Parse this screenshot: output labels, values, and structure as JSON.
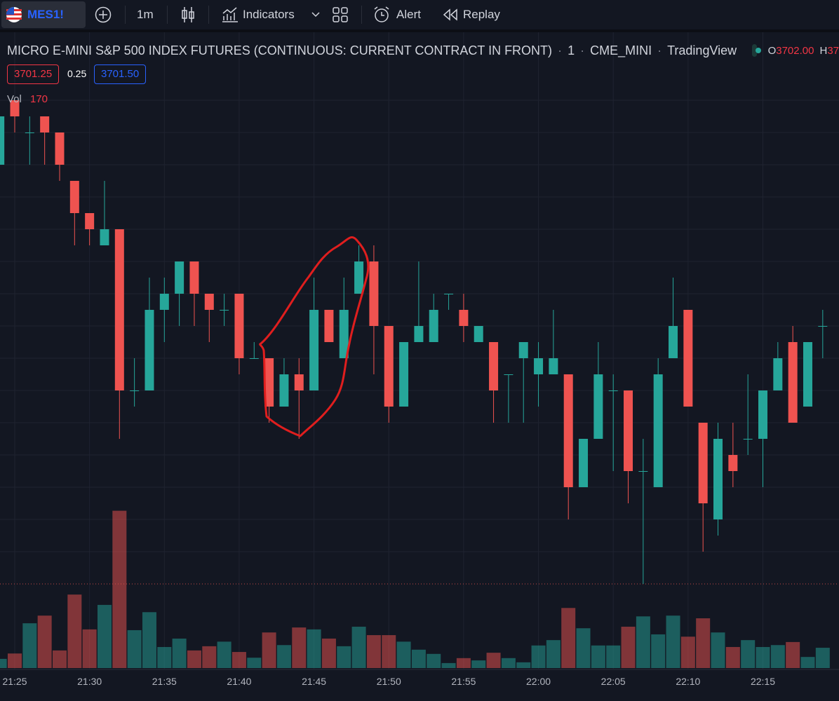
{
  "toolbar": {
    "symbol": "MES1!",
    "interval": "1m",
    "indicators": "Indicators",
    "alert": "Alert",
    "replay": "Replay"
  },
  "legend": {
    "title": "MICRO E-MINI S&P 500 INDEX FUTURES (CONTINUOUS: CURRENT CONTRACT IN FRONT)",
    "interval": "1",
    "exchange": "CME_MINI",
    "source": "TradingView",
    "open_label": "O",
    "open_value": "3702.00",
    "high_label": "H",
    "high_value": "37"
  },
  "quotes": {
    "sell": "3701.25",
    "spread": "0.25",
    "buy": "3701.50"
  },
  "volume_legend": {
    "label": "Vol",
    "value": "170"
  },
  "chart_data": {
    "type": "candlestick",
    "categories": [
      null,
      "21:25",
      null,
      null,
      null,
      null,
      "21:30",
      null,
      null,
      null,
      null,
      "21:35",
      null,
      null,
      null,
      null,
      "21:40",
      null,
      null,
      null,
      null,
      "21:45",
      null,
      null,
      null,
      null,
      "21:50",
      null,
      null,
      null,
      null,
      "21:55",
      null,
      null,
      null,
      null,
      "22:00",
      null,
      null,
      null,
      null,
      "22:05",
      null,
      null,
      null,
      null,
      "22:10",
      null,
      null,
      null,
      null,
      "22:15",
      null,
      null,
      null,
      null
    ],
    "open": [
      3707.75,
      3708.75,
      3708.25,
      3708.5,
      3708.25,
      3707.5,
      3707,
      3706.5,
      3706.75,
      3704.25,
      3704.25,
      3705.5,
      3705.75,
      3706.25,
      3705.75,
      3705.5,
      3705.75,
      3704.75,
      3704.75,
      3704,
      3704.5,
      3704.25,
      3705.5,
      3704.75,
      3705.75,
      3706.25,
      3705.25,
      3704,
      3705,
      3705,
      3705.75,
      3705.5,
      3705,
      3705,
      3704.5,
      3704.75,
      3704.5,
      3704.5,
      3704.5,
      3702.75,
      3703.5,
      3704.25,
      3704.25,
      3703,
      3702.75,
      3704.75,
      3705.5,
      3703.75,
      3702.25,
      3703.25,
      3703.5,
      3703.5,
      3704.25,
      3705,
      3704,
      3705.25
    ],
    "high": [
      3708.5,
      3708.75,
      3708.5,
      3708.5,
      3708.25,
      3707.5,
      3707,
      3707.5,
      3706.75,
      3704.75,
      3706,
      3706,
      3706.25,
      3706.25,
      3705.75,
      3705.75,
      3705.75,
      3705,
      3704.75,
      3704.75,
      3704.75,
      3706,
      3705.5,
      3706,
      3706.5,
      3706.5,
      3705.25,
      3705,
      3706.25,
      3705.75,
      3705.75,
      3705.75,
      3705.25,
      3705,
      3704.5,
      3705,
      3705,
      3705.5,
      3704.5,
      3703.5,
      3705,
      3704.5,
      3704.25,
      3703.5,
      3704.75,
      3706,
      3705.5,
      3703.75,
      3703.75,
      3703.75,
      3704.5,
      3704.25,
      3705,
      3705.25,
      3705,
      3705.5
    ],
    "low": [
      3707.75,
      3708.25,
      3707.75,
      3707.75,
      3707.5,
      3706.5,
      3706.5,
      3706.5,
      3703.5,
      3704,
      3704.25,
      3705,
      3705.25,
      3705.25,
      3705,
      3705.25,
      3704.5,
      3704.75,
      3703.75,
      3704,
      3703.5,
      3704.25,
      3705,
      3704.75,
      3705.75,
      3704.5,
      3703.75,
      3704,
      3705,
      3705,
      3705.5,
      3705,
      3705,
      3703.75,
      3703.75,
      3703.75,
      3704,
      3704.5,
      3702.25,
      3702.75,
      3703.5,
      3703,
      3702.5,
      3701.25,
      3702.75,
      3704.75,
      3704,
      3701.75,
      3702,
      3702.75,
      3703.25,
      3702.75,
      3704.25,
      3703.75,
      3704,
      3704.75
    ],
    "close": [
      3708.5,
      3708.5,
      3708.25,
      3708.25,
      3707.75,
      3707,
      3706.75,
      3706.75,
      3704.25,
      3704.25,
      3705.5,
      3705.75,
      3706.25,
      3705.75,
      3705.5,
      3705.5,
      3704.75,
      3704.75,
      3704,
      3704.5,
      3704.25,
      3705.5,
      3705,
      3705.5,
      3706.25,
      3705.25,
      3704,
      3705,
      3705.25,
      3705.5,
      3705.75,
      3705.25,
      3705.25,
      3704.25,
      3704.5,
      3705,
      3704.75,
      3704.75,
      3702.75,
      3703.5,
      3704.5,
      3704.25,
      3703,
      3703,
      3704.5,
      3705.25,
      3704,
      3702.5,
      3703.5,
      3703,
      3703.5,
      3704.25,
      3704.75,
      3703.75,
      3705,
      3705.25
    ],
    "volume": [
      24,
      38,
      117,
      137,
      46,
      192,
      101,
      165,
      411,
      99,
      146,
      55,
      77,
      46,
      57,
      69,
      42,
      27,
      93,
      60,
      106,
      101,
      77,
      57,
      108,
      86,
      86,
      69,
      48,
      37,
      13,
      26,
      20,
      40,
      26,
      15,
      59,
      73,
      157,
      104,
      59,
      59,
      108,
      135,
      88,
      137,
      82,
      130,
      93,
      55,
      73,
      55,
      60,
      68,
      29,
      53
    ],
    "ylim": [
      3700,
      3709
    ],
    "vlim": [
      0,
      500
    ],
    "ygrid": [
      3701.75,
      3702.25,
      3702.75,
      3703.25,
      3703.75,
      3704.25,
      3704.75,
      3705.25,
      3705.75,
      3706.25,
      3706.75,
      3707.25,
      3707.75,
      3708.25,
      3708.75
    ],
    "price_line": 3701.25,
    "up_color": "#26a69a",
    "down_color": "#ef5350",
    "grid": true
  }
}
